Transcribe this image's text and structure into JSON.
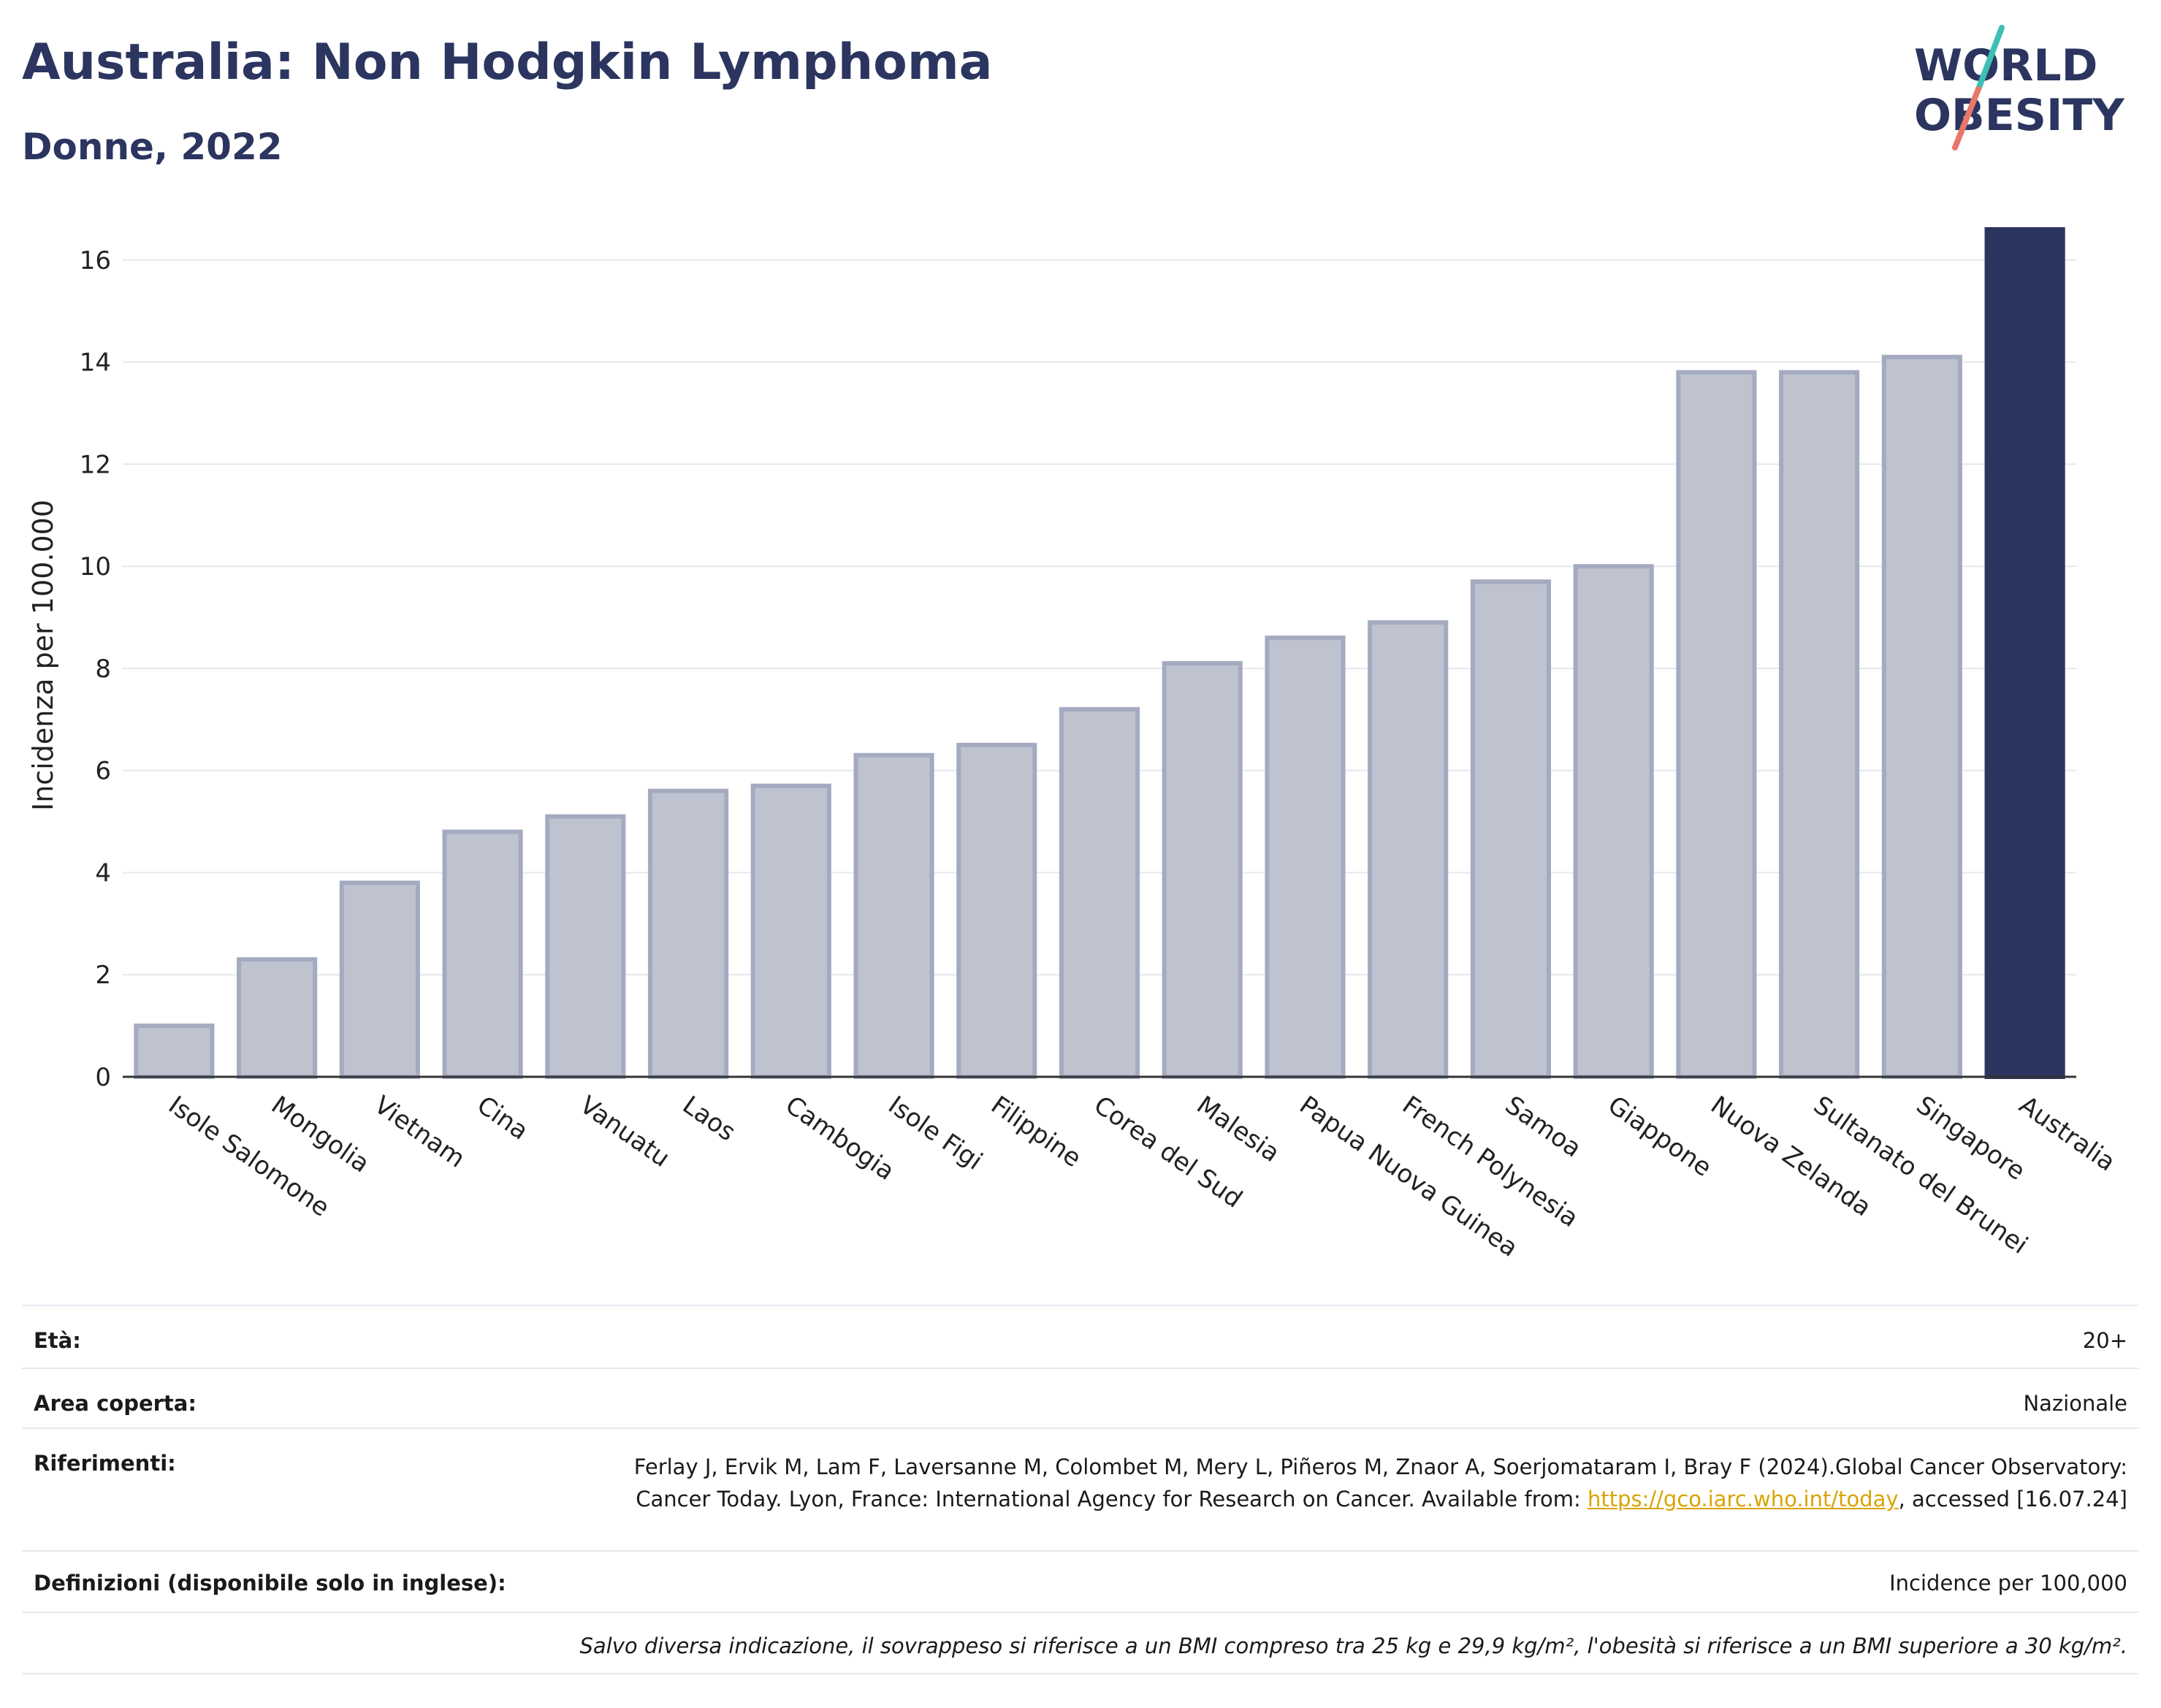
{
  "header": {
    "title": "Australia: Non Hodgkin Lymphoma",
    "subtitle": "Donne, 2022"
  },
  "logo": {
    "line1": "WORLD",
    "line2": "OBESITY",
    "icon": "world-obesity-logo"
  },
  "chart_data": {
    "type": "bar",
    "ylabel": "Incidenza per 100.000",
    "xlabel": "",
    "ylim": [
      0,
      16.8
    ],
    "yticks": [
      0,
      2,
      4,
      6,
      8,
      10,
      12,
      14,
      16
    ],
    "grid": true,
    "categories": [
      "Isole Salomone",
      "Mongolia",
      "Vietnam",
      "Cina",
      "Vanuatu",
      "Laos",
      "Cambogia",
      "Isole Figi",
      "Filippine",
      "Corea del Sud",
      "Malesia",
      "Papua Nuova Guinea",
      "French Polynesia",
      "Samoa",
      "Giappone",
      "Nuova Zelanda",
      "Sultanato del Brunei",
      "Singapore",
      "Australia"
    ],
    "values": [
      1.0,
      2.3,
      3.8,
      4.8,
      5.1,
      5.6,
      5.7,
      6.3,
      6.5,
      7.2,
      8.1,
      8.6,
      8.9,
      9.7,
      10.0,
      13.8,
      13.8,
      14.1,
      16.6
    ],
    "highlight": "Australia",
    "colors": {
      "default_fill": "#bfc3d0",
      "default_stroke": "#a4aac0",
      "highlight_fill": "#2b3560",
      "axis": "#333333",
      "grid": "#e6e8ef"
    }
  },
  "info": {
    "eta_label": "Età:",
    "eta_value": "20+",
    "area_label": "Area coperta:",
    "area_value": "Nazionale",
    "ref_label": "Riferimenti:",
    "ref_text": "Ferlay J, Ervik M, Lam F, Laversanne M, Colombet M, Mery L, Piñeros M, Znaor A, Soerjomataram I, Bray F (2024).Global Cancer Observatory: Cancer Today. Lyon, France: International Agency for Research on Cancer. Available from:",
    "ref_link": "https://gco.iarc.who.int/today",
    "ref_suffix": ", accessed [16.07.24]",
    "def_label": "Definizioni (disponibile solo in inglese):",
    "def_value": "Incidence per 100,000",
    "note": "Salvo diversa indicazione, il sovrappeso si riferisce a un BMI compreso tra 25 kg e 29,9 kg/m², l'obesità si riferisce a un BMI superiore a 30 kg/m²."
  }
}
